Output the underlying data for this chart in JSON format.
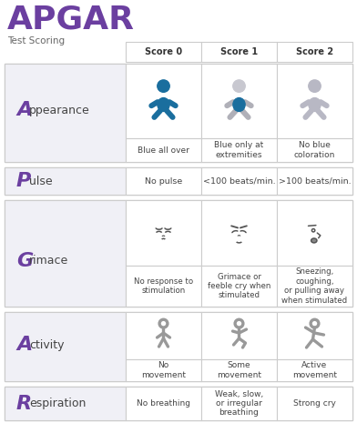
{
  "title": "APGAR",
  "subtitle": "Test Scoring",
  "title_color": "#6b3fa0",
  "header_labels": [
    "Score 0",
    "Score 1",
    "Score 2"
  ],
  "row_letters": [
    "A",
    "P",
    "G",
    "A",
    "R"
  ],
  "row_words": [
    "ppearance",
    "ulse",
    "rimace",
    "ctivity",
    "espiration"
  ],
  "letter_color": "#6b3fa0",
  "word_color": "#444444",
  "border_color": "#cccccc",
  "text_color": "#444444",
  "label_bg": "#f0f0f6",
  "score0": [
    "Blue all over",
    "No pulse",
    "No response to\nstimulation",
    "No\nmovement",
    "No breathing"
  ],
  "score1": [
    "Blue only at\nextremities",
    "<100 beats/min.",
    "Grimace or\nfeeble cry when\nstimulated",
    "Some\nmovement",
    "Weak, slow,\nor irregular\nbreathing"
  ],
  "score2": [
    "No blue\ncoloration",
    ">100 beats/min.",
    "Sneezing,\ncoughing,\nor pulling away\nwhen stimulated",
    "Active\nmovement",
    "Strong cry"
  ],
  "fig_width": 3.92,
  "fig_height": 4.65,
  "dpi": 100
}
